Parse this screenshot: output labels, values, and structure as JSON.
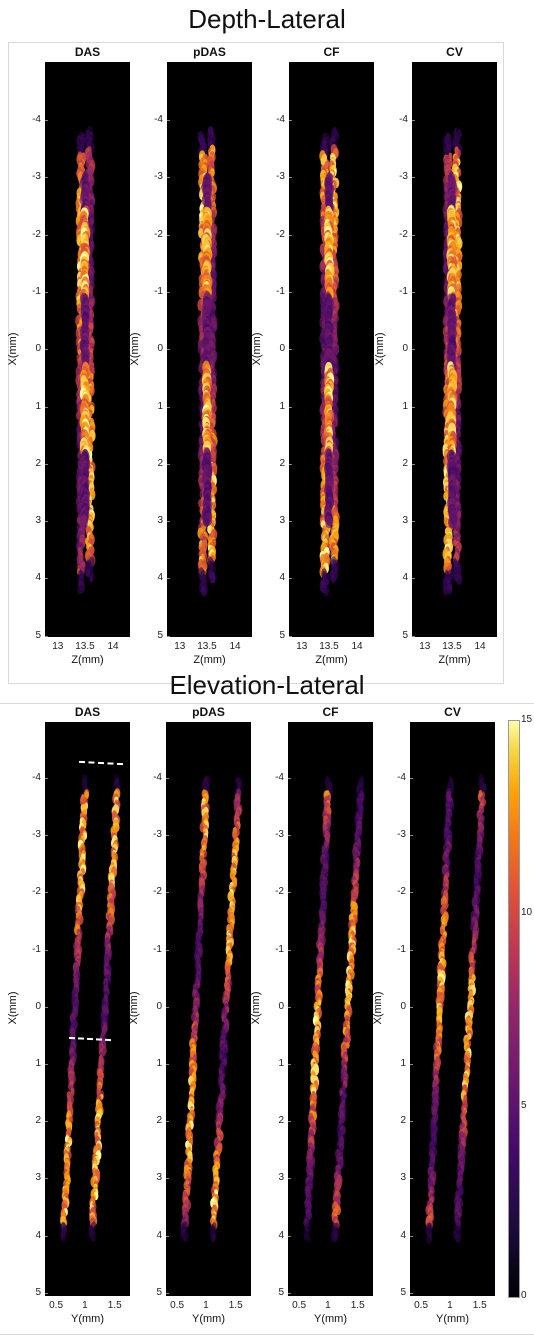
{
  "sections": {
    "top_title": "Depth-Lateral",
    "bottom_title": "Elevation-Lateral"
  },
  "panel_titles": [
    "DAS",
    "pDAS",
    "CF",
    "CV"
  ],
  "axis_labels": {
    "x_top": "Z(mm)",
    "x_bottom": "Y(mm)",
    "y": "X(mm)"
  },
  "ticks": {
    "x_top": [
      "13",
      "13.5",
      "14"
    ],
    "x_bottom": [
      "0.5",
      "1",
      "1.5"
    ],
    "y_top": [
      "-4",
      "-3",
      "-2",
      "-1",
      "0",
      "1",
      "2",
      "3",
      "4",
      "5"
    ],
    "y_bottom": [
      "-4",
      "-3",
      "-2",
      "-1",
      "0",
      "1",
      "2",
      "3",
      "4",
      "5"
    ],
    "colorbar": [
      "15",
      "10",
      "5",
      "0"
    ]
  },
  "colors": {
    "background": "#000000",
    "hot": "#fff8b0",
    "mid": "#e8641c",
    "low": "#6a1a7a"
  },
  "chart_data": [
    {
      "type": "heatmap",
      "title": "DAS",
      "xlabel": "Z(mm)",
      "ylabel": "X(mm)",
      "xlim": [
        12.75,
        14.3
      ],
      "ylim": [
        -5,
        5
      ]
    },
    {
      "type": "heatmap",
      "title": "pDAS",
      "xlabel": "Z(mm)",
      "ylabel": "X(mm)",
      "xlim": [
        12.75,
        14.3
      ],
      "ylim": [
        -5,
        5
      ]
    },
    {
      "type": "heatmap",
      "title": "CF",
      "xlabel": "Z(mm)",
      "ylabel": "X(mm)",
      "xlim": [
        12.75,
        14.3
      ],
      "ylim": [
        -5,
        5
      ]
    },
    {
      "type": "heatmap",
      "title": "CV",
      "xlabel": "Z(mm)",
      "ylabel": "X(mm)",
      "xlim": [
        12.75,
        14.3
      ],
      "ylim": [
        -5,
        5
      ]
    },
    {
      "type": "heatmap",
      "title": "DAS",
      "xlabel": "Y(mm)",
      "ylabel": "X(mm)",
      "xlim": [
        0.3,
        1.9
      ],
      "ylim": [
        -5,
        5
      ],
      "colorbar_range": [
        0,
        15
      ]
    },
    {
      "type": "heatmap",
      "title": "pDAS",
      "xlabel": "Y(mm)",
      "ylabel": "X(mm)",
      "xlim": [
        0.3,
        1.9
      ],
      "ylim": [
        -5,
        5
      ]
    },
    {
      "type": "heatmap",
      "title": "CF",
      "xlabel": "Y(mm)",
      "ylabel": "X(mm)",
      "xlim": [
        0.3,
        1.9
      ],
      "ylim": [
        -5,
        5
      ]
    },
    {
      "type": "heatmap",
      "title": "CV",
      "xlabel": "Y(mm)",
      "ylabel": "X(mm)",
      "xlim": [
        0.3,
        1.9
      ],
      "ylim": [
        -5,
        5
      ]
    }
  ]
}
